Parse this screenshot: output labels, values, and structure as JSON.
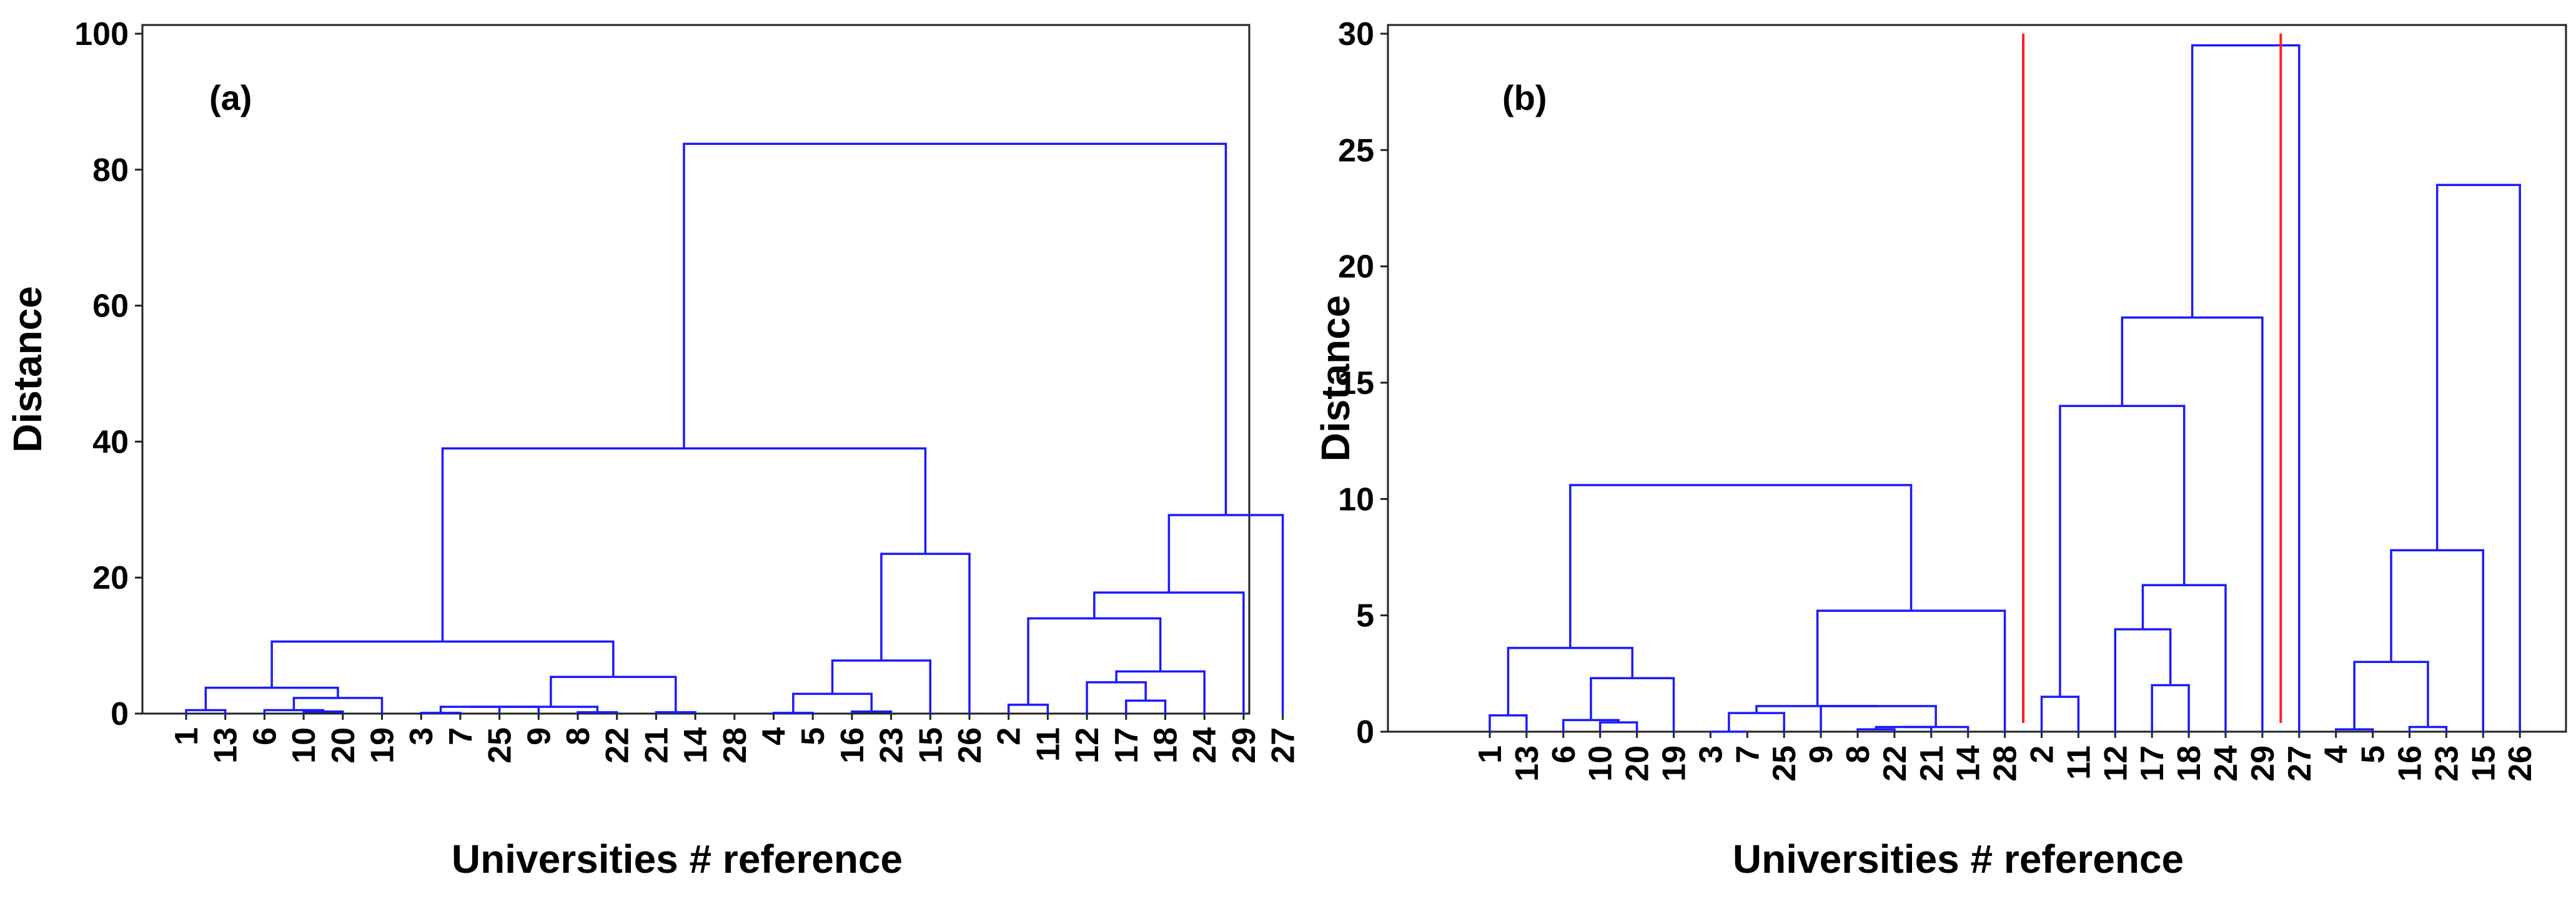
{
  "chart_data": [
    {
      "type": "dendrogram",
      "panel_label": "(a)",
      "ylabel": "Distance",
      "xlabel": "Universities # reference",
      "ylim": [
        0,
        100
      ],
      "yticks": [
        0,
        20,
        40,
        60,
        80,
        100
      ],
      "leaves": [
        "1",
        "13",
        "6",
        "10",
        "20",
        "19",
        "3",
        "7",
        "25",
        "9",
        "8",
        "22",
        "21",
        "14",
        "28",
        "4",
        "5",
        "16",
        "23",
        "15",
        "26",
        "2",
        "11",
        "12",
        "17",
        "18",
        "24",
        "29",
        "27"
      ],
      "merges": [
        {
          "a": "leaf:0",
          "b": "leaf:1",
          "height": 0.5
        },
        {
          "a": "leaf:3",
          "b": "leaf:4",
          "height": 0.3
        },
        {
          "a": "leaf:2",
          "b": "node:1",
          "height": 0.5
        },
        {
          "a": "node:2",
          "b": "leaf:5",
          "height": 2.3
        },
        {
          "a": "node:0",
          "b": "node:3",
          "height": 3.8
        },
        {
          "a": "leaf:6",
          "b": "leaf:7",
          "height": 0.1
        },
        {
          "a": "node:5",
          "b": "leaf:8",
          "height": 1.0
        },
        {
          "a": "node:6",
          "b": "leaf:9",
          "height": 1.0
        },
        {
          "a": "leaf:10",
          "b": "leaf:11",
          "height": 0.2
        },
        {
          "a": "node:7",
          "b": "node:8",
          "height": 1.0
        },
        {
          "a": "leaf:12",
          "b": "leaf:13",
          "height": 0.2
        },
        {
          "a": "node:9",
          "b": "node:10",
          "height": 5.4
        },
        {
          "a": "node:4",
          "b": "node:11",
          "height": 10.6
        },
        {
          "a": "leaf:15",
          "b": "leaf:16",
          "height": 0.1
        },
        {
          "a": "leaf:17",
          "b": "leaf:18",
          "height": 0.3
        },
        {
          "a": "node:13",
          "b": "node:14",
          "height": 2.9
        },
        {
          "a": "node:15",
          "b": "leaf:19",
          "height": 7.8
        },
        {
          "a": "node:16",
          "b": "leaf:20",
          "height": 23.5
        },
        {
          "a": "node:12",
          "b": "node:17",
          "height": 39.0
        },
        {
          "a": "leaf:21",
          "b": "leaf:22",
          "height": 1.3
        },
        {
          "a": "leaf:24",
          "b": "leaf:25",
          "height": 1.9
        },
        {
          "a": "leaf:23",
          "b": "node:20",
          "height": 4.6
        },
        {
          "a": "node:21",
          "b": "leaf:26",
          "height": 6.2
        },
        {
          "a": "node:19",
          "b": "node:22",
          "height": 14.0
        },
        {
          "a": "node:23",
          "b": "leaf:27",
          "height": 17.8
        },
        {
          "a": "node:24",
          "b": "leaf:28",
          "height": 29.2
        },
        {
          "a": "node:18",
          "b": "node:25",
          "height": 83.8
        }
      ]
    },
    {
      "type": "dendrogram",
      "panel_label": "(b)",
      "ylabel": "Distance",
      "xlabel": "Universities # reference",
      "ylim": [
        0,
        30
      ],
      "yticks": [
        0,
        5,
        10,
        15,
        20,
        25,
        30
      ],
      "cut_lines_between_leaves": [
        14.5,
        21.5
      ],
      "leaves": [
        "1",
        "13",
        "6",
        "10",
        "20",
        "19",
        "3",
        "7",
        "25",
        "9",
        "8",
        "22",
        "21",
        "14",
        "28",
        "2",
        "11",
        "12",
        "17",
        "18",
        "24",
        "29",
        "27",
        "4",
        "5",
        "16",
        "23",
        "15",
        "26"
      ],
      "merges": [
        {
          "a": "leaf:0",
          "b": "leaf:1",
          "height": 0.7
        },
        {
          "a": "leaf:3",
          "b": "leaf:4",
          "height": 0.4
        },
        {
          "a": "leaf:2",
          "b": "node:1",
          "height": 0.5
        },
        {
          "a": "node:2",
          "b": "leaf:5",
          "height": 2.3
        },
        {
          "a": "node:0",
          "b": "node:3",
          "height": 3.6
        },
        {
          "a": "leaf:6",
          "b": "leaf:7",
          "height": 0.0
        },
        {
          "a": "node:5",
          "b": "leaf:8",
          "height": 0.8
        },
        {
          "a": "leaf:10",
          "b": "leaf:11",
          "height": 0.1
        },
        {
          "a": "node:7",
          "b": "leaf:12",
          "height": 0.2
        },
        {
          "a": "node:8",
          "b": "leaf:13",
          "height": 0.2
        },
        {
          "a": "leaf:9",
          "b": "node:9",
          "height": 1.1
        },
        {
          "a": "node:6",
          "b": "node:10",
          "height": 1.1
        },
        {
          "a": "node:11",
          "b": "leaf:14",
          "height": 5.2
        },
        {
          "a": "node:4",
          "b": "node:12",
          "height": 10.6
        },
        {
          "a": "leaf:15",
          "b": "leaf:16",
          "height": 1.5
        },
        {
          "a": "leaf:18",
          "b": "leaf:19",
          "height": 2.0
        },
        {
          "a": "leaf:17",
          "b": "node:15",
          "height": 4.4
        },
        {
          "a": "node:16",
          "b": "leaf:20",
          "height": 6.3
        },
        {
          "a": "node:14",
          "b": "node:17",
          "height": 14.0
        },
        {
          "a": "node:18",
          "b": "leaf:21",
          "height": 17.8
        },
        {
          "a": "node:19",
          "b": "leaf:22",
          "height": 29.5
        },
        {
          "a": "leaf:23",
          "b": "leaf:24",
          "height": 0.1
        },
        {
          "a": "leaf:25",
          "b": "leaf:26",
          "height": 0.2
        },
        {
          "a": "node:21",
          "b": "node:22",
          "height": 3.0
        },
        {
          "a": "node:23",
          "b": "leaf:27",
          "height": 7.8
        },
        {
          "a": "node:24",
          "b": "leaf:28",
          "height": 23.5
        }
      ]
    }
  ]
}
